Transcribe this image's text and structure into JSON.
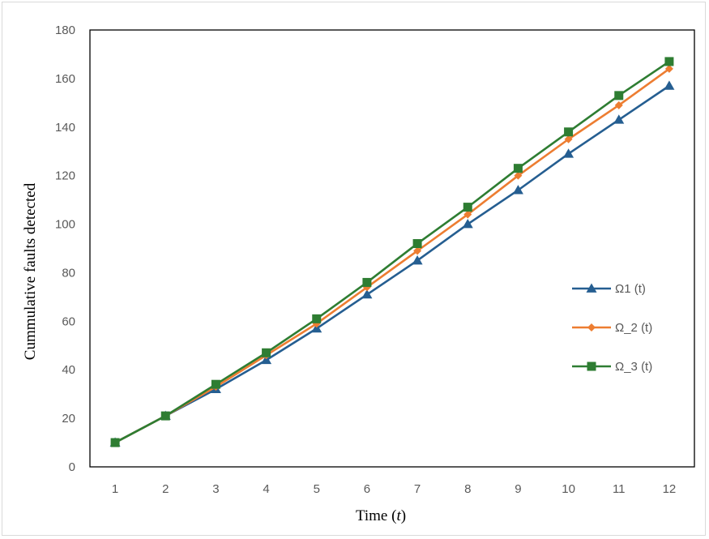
{
  "chart_data": {
    "type": "line",
    "title": "",
    "xlabel_prefix": "Time (",
    "xlabel_var": "t",
    "xlabel_suffix": ")",
    "ylabel": "Cummulative faults detected",
    "x": [
      1,
      2,
      3,
      4,
      5,
      6,
      7,
      8,
      9,
      10,
      11,
      12
    ],
    "ylim": [
      0,
      180
    ],
    "yticks": [
      0,
      20,
      40,
      60,
      80,
      100,
      120,
      140,
      160,
      180
    ],
    "grid": false,
    "legend_position": "right",
    "series": [
      {
        "name": "Ω1 (t)",
        "color": "#255e91",
        "marker": "triangle",
        "values": [
          10,
          21,
          32,
          44,
          57,
          71,
          85,
          100,
          114,
          129,
          143,
          157
        ]
      },
      {
        "name": "Ω_2 (t)",
        "color": "#ed7d31",
        "marker": "diamond",
        "values": [
          10,
          21,
          33,
          46,
          59,
          74,
          89,
          104,
          120,
          135,
          149,
          164
        ]
      },
      {
        "name": "Ω_3 (t)",
        "color": "#2e7d32",
        "marker": "square",
        "values": [
          10,
          21,
          34,
          47,
          61,
          76,
          92,
          107,
          123,
          138,
          153,
          167
        ]
      }
    ]
  }
}
